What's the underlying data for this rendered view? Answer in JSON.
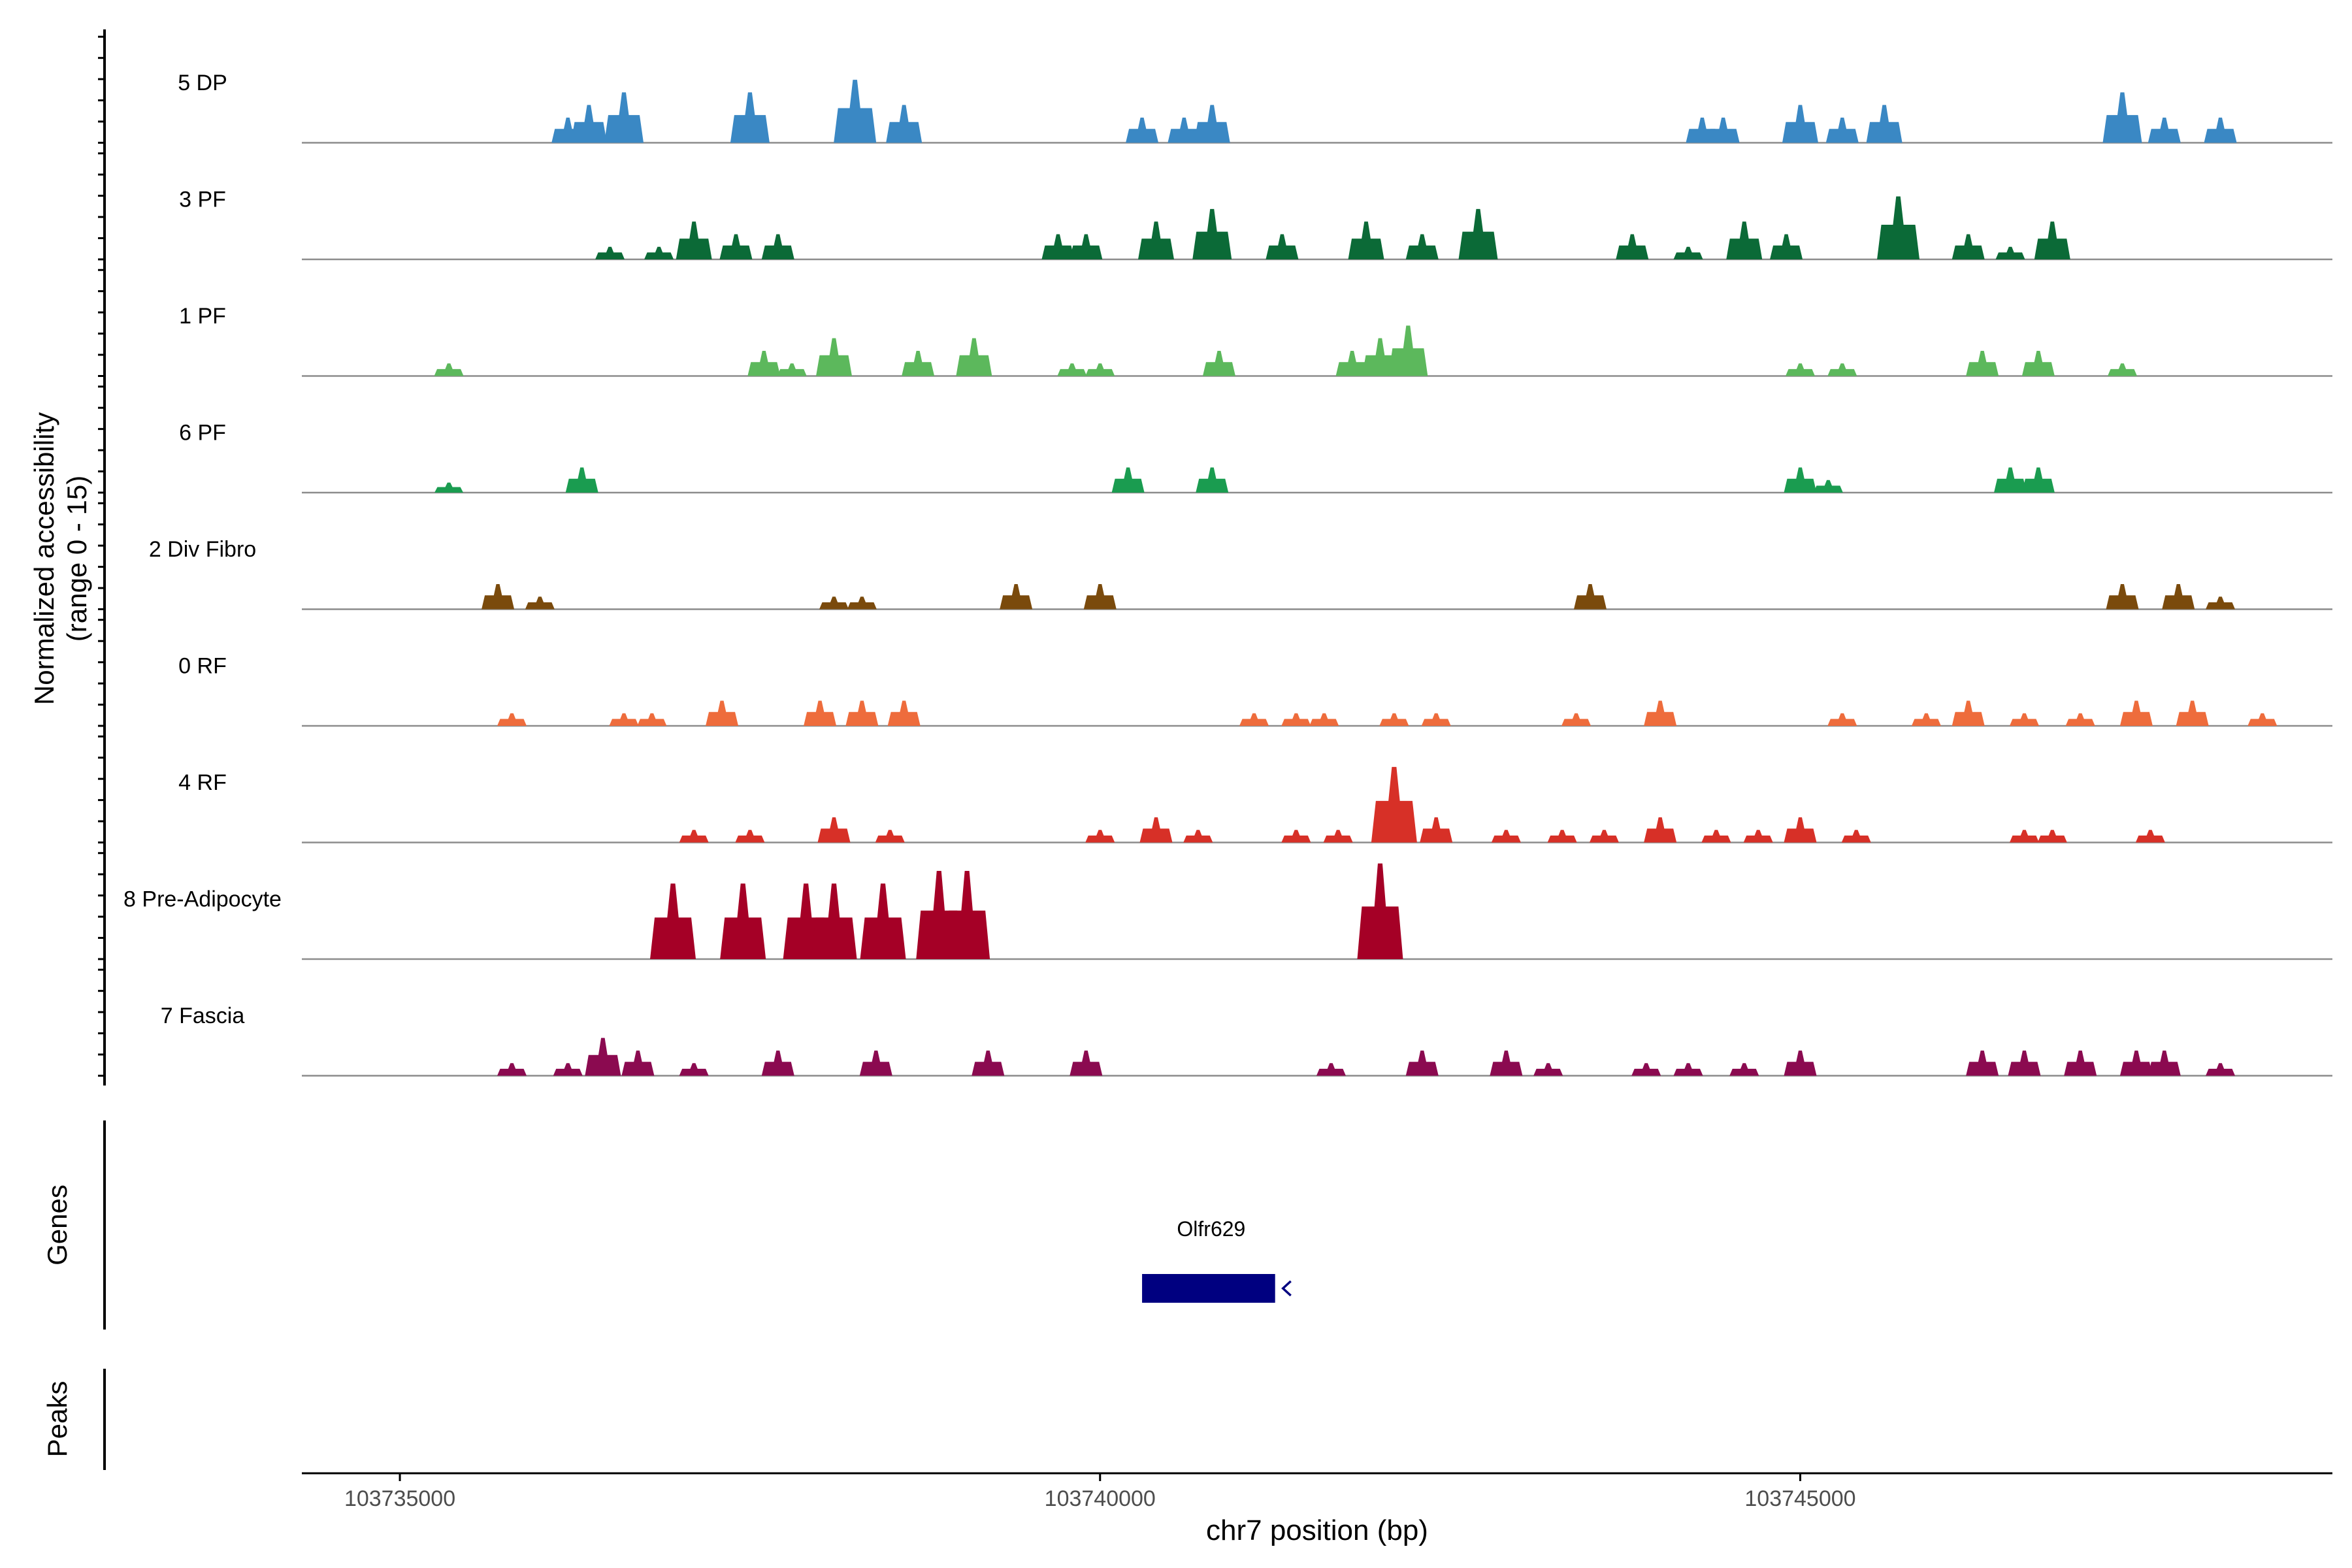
{
  "chart_data": {
    "type": "area",
    "subtype": "coverage-tracks",
    "title": "",
    "ylabel_line1": "Normalized accessibility",
    "ylabel_line2": "(range 0 - 15)",
    "xlabel": "chr7 position (bp)",
    "y_range": [
      0,
      15
    ],
    "x_range": [
      103734300,
      103748800
    ],
    "x_ticks": [
      {
        "value": 103735000,
        "label": "103735000"
      },
      {
        "value": 103740000,
        "label": "103740000"
      },
      {
        "value": 103745000,
        "label": "103745000"
      }
    ],
    "tracks": [
      {
        "name": "5 DP",
        "color": "#3a88c4",
        "peaks": [
          [
            103736200,
            2
          ],
          [
            103736350,
            3
          ],
          [
            103736600,
            4
          ],
          [
            103737500,
            4
          ],
          [
            103738250,
            5
          ],
          [
            103738600,
            3
          ],
          [
            103740300,
            2
          ],
          [
            103740600,
            2
          ],
          [
            103740800,
            3
          ],
          [
            103744300,
            2
          ],
          [
            103744450,
            2
          ],
          [
            103745000,
            3
          ],
          [
            103745300,
            2
          ],
          [
            103745600,
            3
          ],
          [
            103747300,
            4
          ],
          [
            103747600,
            2
          ],
          [
            103748000,
            2
          ]
        ]
      },
      {
        "name": "3 PF",
        "color": "#0b6a37",
        "peaks": [
          [
            103736500,
            1
          ],
          [
            103736850,
            1
          ],
          [
            103737100,
            3
          ],
          [
            103737400,
            2
          ],
          [
            103737700,
            2
          ],
          [
            103739700,
            2
          ],
          [
            103739900,
            2
          ],
          [
            103740400,
            3
          ],
          [
            103740800,
            4
          ],
          [
            103741300,
            2
          ],
          [
            103741900,
            3
          ],
          [
            103742300,
            2
          ],
          [
            103742700,
            4
          ],
          [
            103743800,
            2
          ],
          [
            103744200,
            1
          ],
          [
            103744600,
            3
          ],
          [
            103744900,
            2
          ],
          [
            103745700,
            5
          ],
          [
            103746200,
            2
          ],
          [
            103746500,
            1
          ],
          [
            103746800,
            3
          ]
        ]
      },
      {
        "name": "1 PF",
        "color": "#5cb85c",
        "peaks": [
          [
            103735350,
            1
          ],
          [
            103737600,
            2
          ],
          [
            103737800,
            1
          ],
          [
            103738100,
            3
          ],
          [
            103738700,
            2
          ],
          [
            103739100,
            3
          ],
          [
            103739800,
            1
          ],
          [
            103740000,
            1
          ],
          [
            103740850,
            2
          ],
          [
            103741800,
            2
          ],
          [
            103742000,
            3
          ],
          [
            103742200,
            4
          ],
          [
            103745000,
            1
          ],
          [
            103745300,
            1
          ],
          [
            103746300,
            2
          ],
          [
            103746700,
            2
          ],
          [
            103747300,
            1
          ]
        ]
      },
      {
        "name": "6 PF",
        "color": "#1a9c50",
        "peaks": [
          [
            103735350,
            0.8
          ],
          [
            103736300,
            2
          ],
          [
            103740200,
            2
          ],
          [
            103740800,
            2
          ],
          [
            103745000,
            2
          ],
          [
            103745200,
            1
          ],
          [
            103746500,
            2
          ],
          [
            103746700,
            2
          ]
        ]
      },
      {
        "name": "2 Div Fibro",
        "color": "#7a4a0c",
        "peaks": [
          [
            103735700,
            2
          ],
          [
            103736000,
            1
          ],
          [
            103738100,
            1
          ],
          [
            103738300,
            1
          ],
          [
            103739400,
            2
          ],
          [
            103740000,
            2
          ],
          [
            103743500,
            2
          ],
          [
            103747300,
            2
          ],
          [
            103747700,
            2
          ],
          [
            103748000,
            1
          ]
        ]
      },
      {
        "name": "0 RF",
        "color": "#ee6c3c",
        "peaks": [
          [
            103735800,
            1
          ],
          [
            103736600,
            1
          ],
          [
            103736800,
            1
          ],
          [
            103737300,
            2
          ],
          [
            103738000,
            2
          ],
          [
            103738300,
            2
          ],
          [
            103738600,
            2
          ],
          [
            103741100,
            1
          ],
          [
            103741400,
            1
          ],
          [
            103741600,
            1
          ],
          [
            103742100,
            1
          ],
          [
            103742400,
            1
          ],
          [
            103743400,
            1
          ],
          [
            103744000,
            2
          ],
          [
            103745300,
            1
          ],
          [
            103745900,
            1
          ],
          [
            103746200,
            2
          ],
          [
            103746600,
            1
          ],
          [
            103747000,
            1
          ],
          [
            103747400,
            2
          ],
          [
            103747800,
            2
          ],
          [
            103748300,
            1
          ]
        ]
      },
      {
        "name": "4 RF",
        "color": "#d73027",
        "peaks": [
          [
            103737100,
            1
          ],
          [
            103737500,
            1
          ],
          [
            103738100,
            2
          ],
          [
            103738500,
            1
          ],
          [
            103740000,
            1
          ],
          [
            103740400,
            2
          ],
          [
            103740700,
            1
          ],
          [
            103741400,
            1
          ],
          [
            103741700,
            1
          ],
          [
            103742100,
            6
          ],
          [
            103742400,
            2
          ],
          [
            103742900,
            1
          ],
          [
            103743300,
            1
          ],
          [
            103743600,
            1
          ],
          [
            103744000,
            2
          ],
          [
            103744400,
            1
          ],
          [
            103744700,
            1
          ],
          [
            103745000,
            2
          ],
          [
            103745400,
            1
          ],
          [
            103746600,
            1
          ],
          [
            103746800,
            1
          ],
          [
            103747500,
            1
          ]
        ]
      },
      {
        "name": "8 Pre-Adipocyte",
        "color": "#a50026",
        "peaks": [
          [
            103736950,
            6
          ],
          [
            103737450,
            6
          ],
          [
            103737900,
            6
          ],
          [
            103738100,
            6
          ],
          [
            103738450,
            6
          ],
          [
            103738850,
            7
          ],
          [
            103739050,
            7
          ],
          [
            103742000,
            8
          ]
        ]
      },
      {
        "name": "7 Fascia",
        "color": "#8b0a50",
        "peaks": [
          [
            103735800,
            1
          ],
          [
            103736200,
            1
          ],
          [
            103736450,
            3
          ],
          [
            103736700,
            2
          ],
          [
            103737100,
            1
          ],
          [
            103737700,
            2
          ],
          [
            103738400,
            2
          ],
          [
            103739200,
            2
          ],
          [
            103739900,
            2
          ],
          [
            103741650,
            1
          ],
          [
            103742300,
            2
          ],
          [
            103742900,
            2
          ],
          [
            103743200,
            1
          ],
          [
            103743900,
            1
          ],
          [
            103744200,
            1
          ],
          [
            103744600,
            1
          ],
          [
            103745000,
            2
          ],
          [
            103746300,
            2
          ],
          [
            103746600,
            2
          ],
          [
            103747000,
            2
          ],
          [
            103747400,
            2
          ],
          [
            103747600,
            2
          ],
          [
            103748000,
            1
          ]
        ]
      }
    ],
    "genes": [
      {
        "name": "Olfr629",
        "start": 103740300,
        "end": 103741250,
        "strand": "-",
        "color": "#000080"
      }
    ],
    "panel_titles": {
      "genes": "Genes",
      "peaks": "Peaks"
    },
    "grid": false
  }
}
